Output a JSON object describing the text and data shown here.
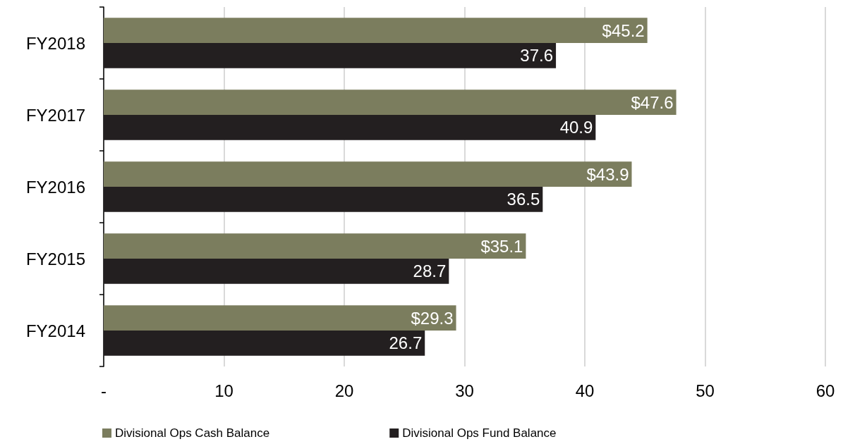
{
  "chart_data": {
    "type": "bar",
    "orientation": "horizontal",
    "categories": [
      "FY2018",
      "FY2017",
      "FY2016",
      "FY2015",
      "FY2014"
    ],
    "series": [
      {
        "name": "Divisional Ops Cash Balance",
        "color": "#7b7d5e",
        "values": [
          45.2,
          47.6,
          43.9,
          35.1,
          29.3
        ],
        "value_labels": [
          "$45.2",
          "$47.6",
          "$43.9",
          "$35.1",
          "$29.3"
        ]
      },
      {
        "name": "Divisional Ops Fund Balance",
        "color": "#231f20",
        "values": [
          37.6,
          40.9,
          36.5,
          28.7,
          26.7
        ],
        "value_labels": [
          "37.6",
          "40.9",
          "36.5",
          "28.7",
          "26.7"
        ]
      }
    ],
    "xlim": [
      0,
      60
    ],
    "xticks": [
      {
        "value": 0,
        "label": "-"
      },
      10,
      20,
      30,
      40,
      50,
      60
    ],
    "grid": "x",
    "legend": "bottom"
  }
}
